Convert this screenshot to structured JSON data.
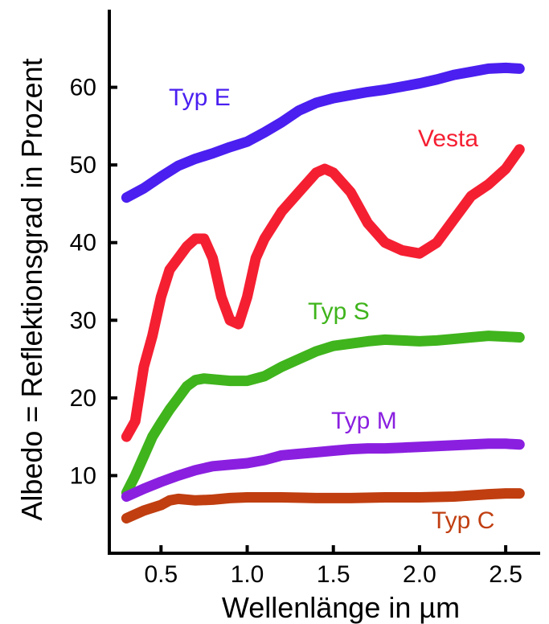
{
  "chart_data": {
    "type": "line",
    "title": "",
    "xlabel": "Wellenlänge in µm",
    "ylabel": "Albedo = Reflektionsgrad in Prozent",
    "xlim": [
      0.2,
      2.7
    ],
    "ylim": [
      0,
      70
    ],
    "xticks": [
      0.5,
      1.0,
      1.5,
      2.0,
      2.5
    ],
    "xtick_labels": [
      "0.5",
      "1.0",
      "1.5",
      "2.0",
      "2.5"
    ],
    "yticks": [
      10,
      20,
      30,
      40,
      50,
      60
    ],
    "ytick_labels": [
      "10",
      "20",
      "30",
      "40",
      "50",
      "60"
    ],
    "grid": false,
    "legend": "none",
    "series": [
      {
        "name": "Typ E",
        "color": "#4a1ff0",
        "x": [
          0.3,
          0.4,
          0.5,
          0.6,
          0.7,
          0.8,
          0.9,
          1.0,
          1.1,
          1.2,
          1.3,
          1.4,
          1.5,
          1.6,
          1.7,
          1.8,
          1.9,
          2.0,
          2.1,
          2.2,
          2.3,
          2.4,
          2.5,
          2.58
        ],
        "y": [
          45.8,
          47.0,
          48.5,
          49.9,
          50.8,
          51.5,
          52.3,
          53.0,
          54.2,
          55.5,
          57.0,
          58.0,
          58.6,
          59.0,
          59.4,
          59.7,
          60.1,
          60.5,
          61.0,
          61.6,
          62.0,
          62.4,
          62.5,
          62.4
        ]
      },
      {
        "name": "Vesta",
        "color": "#f51f32",
        "x": [
          0.3,
          0.35,
          0.4,
          0.45,
          0.5,
          0.55,
          0.6,
          0.65,
          0.7,
          0.75,
          0.8,
          0.85,
          0.9,
          0.95,
          1.0,
          1.05,
          1.1,
          1.2,
          1.3,
          1.4,
          1.45,
          1.5,
          1.6,
          1.7,
          1.8,
          1.9,
          2.0,
          2.1,
          2.2,
          2.3,
          2.4,
          2.5,
          2.58
        ],
        "y": [
          15.0,
          17.0,
          24.0,
          28.0,
          33.0,
          36.5,
          38.0,
          39.5,
          40.5,
          40.5,
          38.0,
          33.0,
          30.0,
          29.5,
          33.0,
          38.0,
          40.5,
          44.0,
          46.5,
          49.0,
          49.5,
          49.0,
          46.5,
          42.5,
          40.0,
          39.0,
          38.6,
          40.0,
          43.0,
          46.0,
          47.5,
          49.5,
          52.0
        ]
      },
      {
        "name": "Typ S",
        "color": "#3fb41c",
        "x": [
          0.3,
          0.35,
          0.4,
          0.45,
          0.5,
          0.55,
          0.6,
          0.65,
          0.7,
          0.75,
          0.8,
          0.9,
          1.0,
          1.1,
          1.2,
          1.3,
          1.4,
          1.5,
          1.6,
          1.7,
          1.8,
          1.9,
          2.0,
          2.1,
          2.2,
          2.3,
          2.4,
          2.5,
          2.58
        ],
        "y": [
          7.8,
          10.0,
          12.5,
          15.0,
          16.8,
          18.5,
          20.0,
          21.5,
          22.3,
          22.5,
          22.4,
          22.2,
          22.2,
          22.8,
          24.0,
          25.0,
          26.0,
          26.7,
          27.0,
          27.3,
          27.5,
          27.4,
          27.3,
          27.4,
          27.6,
          27.8,
          28.0,
          27.9,
          27.8
        ]
      },
      {
        "name": "Typ M",
        "color": "#8a1fe0",
        "x": [
          0.3,
          0.4,
          0.5,
          0.6,
          0.7,
          0.8,
          0.9,
          1.0,
          1.1,
          1.2,
          1.3,
          1.4,
          1.5,
          1.6,
          1.7,
          1.8,
          1.9,
          2.0,
          2.1,
          2.2,
          2.3,
          2.4,
          2.5,
          2.58
        ],
        "y": [
          7.3,
          8.3,
          9.2,
          10.0,
          10.7,
          11.2,
          11.4,
          11.6,
          12.0,
          12.6,
          12.8,
          13.0,
          13.2,
          13.4,
          13.5,
          13.5,
          13.6,
          13.7,
          13.8,
          13.9,
          14.0,
          14.1,
          14.1,
          14.0
        ]
      },
      {
        "name": "Typ C",
        "color": "#c03e10",
        "x": [
          0.3,
          0.4,
          0.5,
          0.55,
          0.6,
          0.7,
          0.8,
          0.9,
          1.0,
          1.2,
          1.4,
          1.6,
          1.8,
          2.0,
          2.2,
          2.4,
          2.5,
          2.58
        ],
        "y": [
          4.5,
          5.5,
          6.2,
          6.8,
          7.0,
          6.8,
          6.9,
          7.1,
          7.2,
          7.2,
          7.1,
          7.1,
          7.2,
          7.2,
          7.3,
          7.6,
          7.7,
          7.7
        ]
      }
    ]
  }
}
